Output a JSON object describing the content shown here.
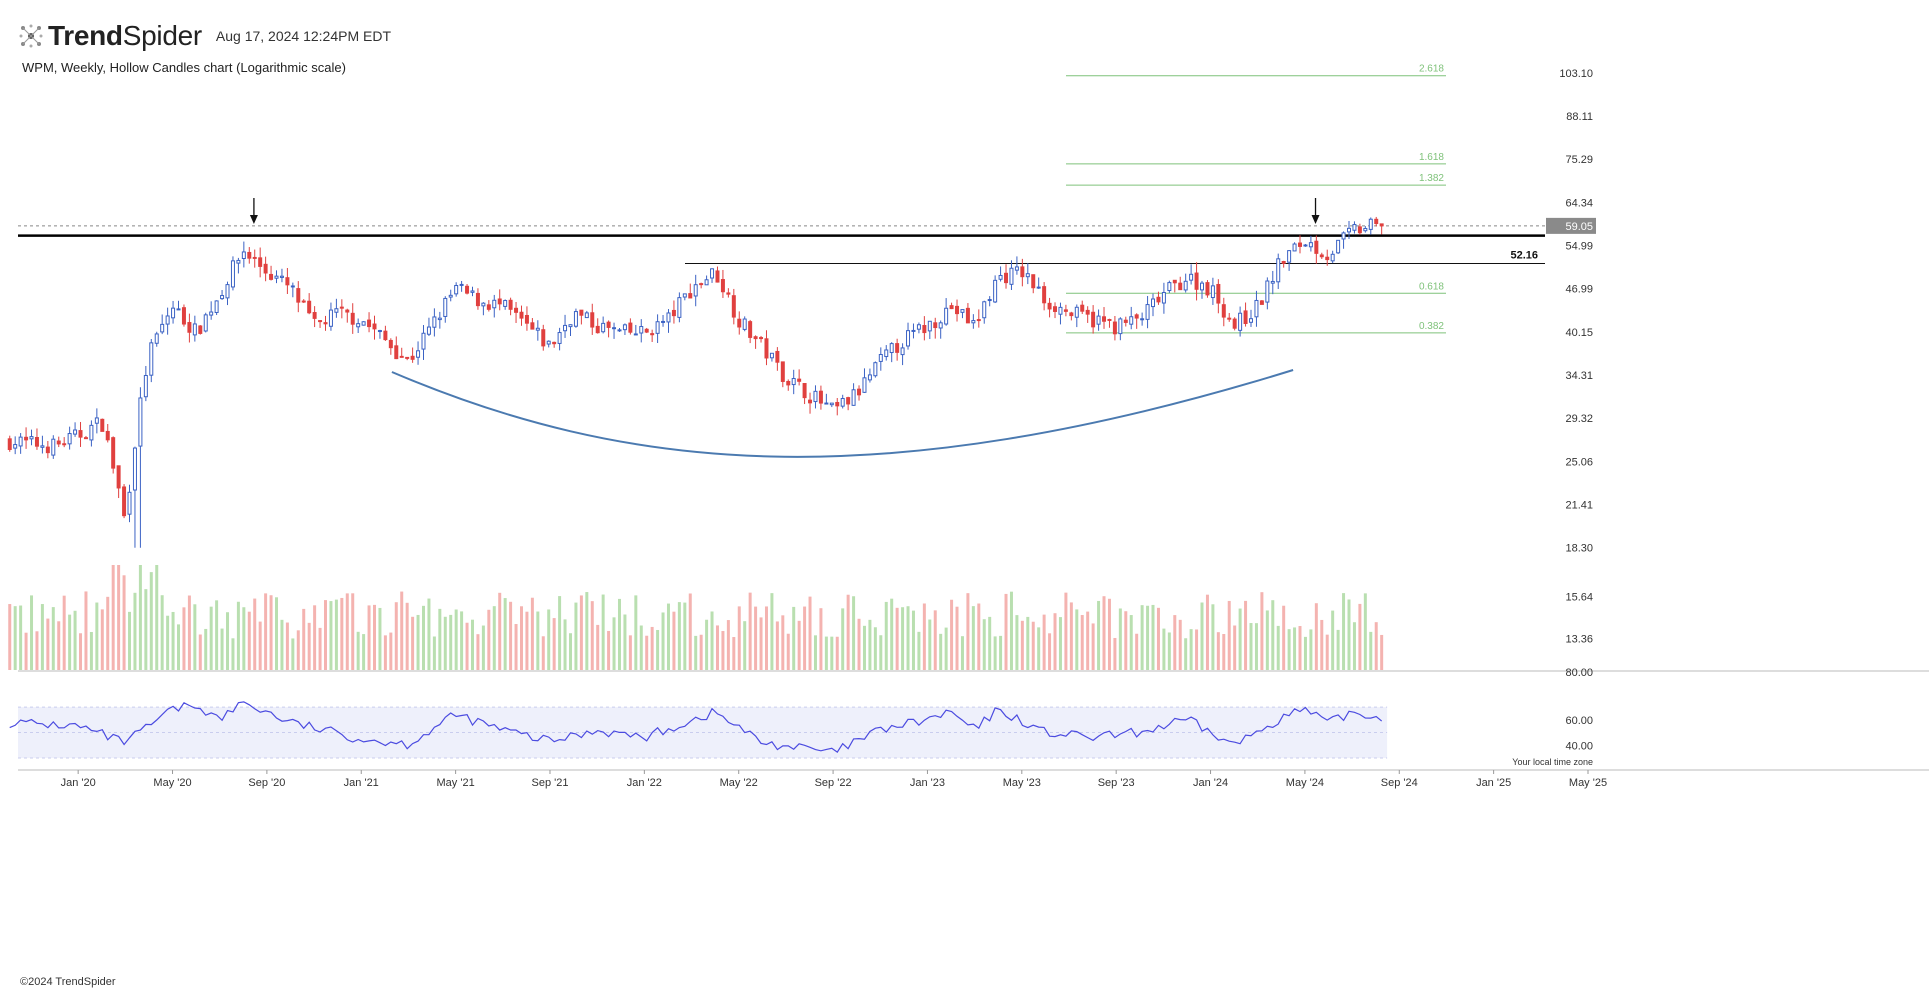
{
  "header": {
    "brand_bold": "Trend",
    "brand_regular": "Spider",
    "timestamp": "Aug 17, 2024 12:24PM EDT",
    "logo_icon": "trendspider-logo-icon"
  },
  "subtitle": "WPM, Weekly, Hollow Candles chart (Logarithmic scale)",
  "footer": {
    "copyright": "©2024 TrendSpider",
    "timezone_note": "Your local time zone"
  },
  "colors": {
    "up": "#3b62c4",
    "down": "#e0403f",
    "vol_up": "#b9dfb0",
    "vol_down": "#f4b3b0",
    "fib": "#7fc27a",
    "arc": "#4b7ab0",
    "rsi": "#4b4be0",
    "rsi_band": "#eef0fb",
    "resistance": "#000000",
    "price_tag_bg": "#8a8a8a"
  },
  "chart_data": {
    "type": "candlestick",
    "symbol": "WPM",
    "interval": "Weekly",
    "scale": "log",
    "y_tick_labels": [
      "103.10",
      "88.11",
      "75.29",
      "64.34",
      "54.99",
      "46.99",
      "40.15",
      "34.31",
      "29.32",
      "25.06",
      "21.41",
      "18.30",
      "15.64",
      "13.36"
    ],
    "x_tick_labels": [
      "Jan '20",
      "May '20",
      "Sep '20",
      "Jan '21",
      "May '21",
      "Sep '21",
      "Jan '22",
      "May '22",
      "Sep '22",
      "Jan '23",
      "May '23",
      "Sep '23",
      "Jan '24",
      "May '24",
      "Sep '24",
      "Jan '25",
      "May '25"
    ],
    "x_range": [
      "2019-10",
      "2025-05"
    ],
    "last_price": "59.05",
    "resistance_level": 57.0,
    "support_level": {
      "value": 51.5,
      "label": "52.16"
    },
    "fib_levels": [
      {
        "ratio": "2.618",
        "value": 102.0
      },
      {
        "ratio": "1.618",
        "value": 74.0
      },
      {
        "ratio": "1.382",
        "value": 68.5
      },
      {
        "ratio": "0.618",
        "value": 46.2
      },
      {
        "ratio": "0.382",
        "value": 40.0
      }
    ],
    "annotations": [
      {
        "type": "down-arrow",
        "date": "2020-08"
      },
      {
        "type": "down-arrow",
        "date": "2024-05"
      },
      {
        "type": "cup-arc",
        "from": "2021-02",
        "to": "2024-04"
      }
    ],
    "price_anchors": [
      [
        "2019-10",
        27
      ],
      [
        "2019-12",
        26.5
      ],
      [
        "2020-01",
        27.5
      ],
      [
        "2020-02",
        29
      ],
      [
        "2020-03",
        20
      ],
      [
        "2020-04",
        37
      ],
      [
        "2020-05",
        44
      ],
      [
        "2020-06",
        40
      ],
      [
        "2020-07",
        46
      ],
      [
        "2020-08",
        54
      ],
      [
        "2020-09",
        50
      ],
      [
        "2020-10",
        47
      ],
      [
        "2020-11",
        41
      ],
      [
        "2020-12",
        43
      ],
      [
        "2021-01",
        42
      ],
      [
        "2021-02",
        39
      ],
      [
        "2021-03",
        36
      ],
      [
        "2021-04",
        41
      ],
      [
        "2021-05",
        47
      ],
      [
        "2021-06",
        45
      ],
      [
        "2021-07",
        44
      ],
      [
        "2021-08",
        41
      ],
      [
        "2021-09",
        38
      ],
      [
        "2021-10",
        43
      ],
      [
        "2021-11",
        41
      ],
      [
        "2021-12",
        40
      ],
      [
        "2022-01",
        40
      ],
      [
        "2022-02",
        42
      ],
      [
        "2022-03",
        47
      ],
      [
        "2022-04",
        50
      ],
      [
        "2022-05",
        42
      ],
      [
        "2022-06",
        38
      ],
      [
        "2022-07",
        34
      ],
      [
        "2022-08",
        32
      ],
      [
        "2022-09",
        30
      ],
      [
        "2022-10",
        32
      ],
      [
        "2022-11",
        36
      ],
      [
        "2022-12",
        39
      ],
      [
        "2023-01",
        41
      ],
      [
        "2023-02",
        44
      ],
      [
        "2023-03",
        41
      ],
      [
        "2023-04",
        49
      ],
      [
        "2023-05",
        50
      ],
      [
        "2023-06",
        45
      ],
      [
        "2023-07",
        43
      ],
      [
        "2023-08",
        42
      ],
      [
        "2023-09",
        41
      ],
      [
        "2023-10",
        42
      ],
      [
        "2023-11",
        46
      ],
      [
        "2023-12",
        49
      ],
      [
        "2024-01",
        47
      ],
      [
        "2024-02",
        41
      ],
      [
        "2024-03",
        44
      ],
      [
        "2024-04",
        52
      ],
      [
        "2024-05",
        56
      ],
      [
        "2024-06",
        53
      ],
      [
        "2024-07",
        58
      ],
      [
        "2024-08",
        59
      ]
    ],
    "rsi": {
      "y_tick_labels": [
        "80.00",
        "60.00",
        "40.00"
      ],
      "anchors": [
        [
          "2019-10",
          58
        ],
        [
          "2020-01",
          55
        ],
        [
          "2020-03",
          42
        ],
        [
          "2020-05",
          68
        ],
        [
          "2020-06",
          72
        ],
        [
          "2020-07",
          60
        ],
        [
          "2020-08",
          74
        ],
        [
          "2020-10",
          58
        ],
        [
          "2021-01",
          45
        ],
        [
          "2021-03",
          41
        ],
        [
          "2021-05",
          64
        ],
        [
          "2021-07",
          52
        ],
        [
          "2021-09",
          43
        ],
        [
          "2021-11",
          52
        ],
        [
          "2022-01",
          46
        ],
        [
          "2022-04",
          66
        ],
        [
          "2022-06",
          42
        ],
        [
          "2022-08",
          37
        ],
        [
          "2022-09",
          34
        ],
        [
          "2022-11",
          52
        ],
        [
          "2023-01",
          60
        ],
        [
          "2023-02",
          66
        ],
        [
          "2023-03",
          52
        ],
        [
          "2023-04",
          68
        ],
        [
          "2023-06",
          50
        ],
        [
          "2023-08",
          46
        ],
        [
          "2023-10",
          50
        ],
        [
          "2023-12",
          60
        ],
        [
          "2024-02",
          40
        ],
        [
          "2024-04",
          62
        ],
        [
          "2024-05",
          68
        ],
        [
          "2024-06",
          57
        ],
        [
          "2024-07",
          66
        ],
        [
          "2024-08",
          62
        ]
      ]
    }
  }
}
